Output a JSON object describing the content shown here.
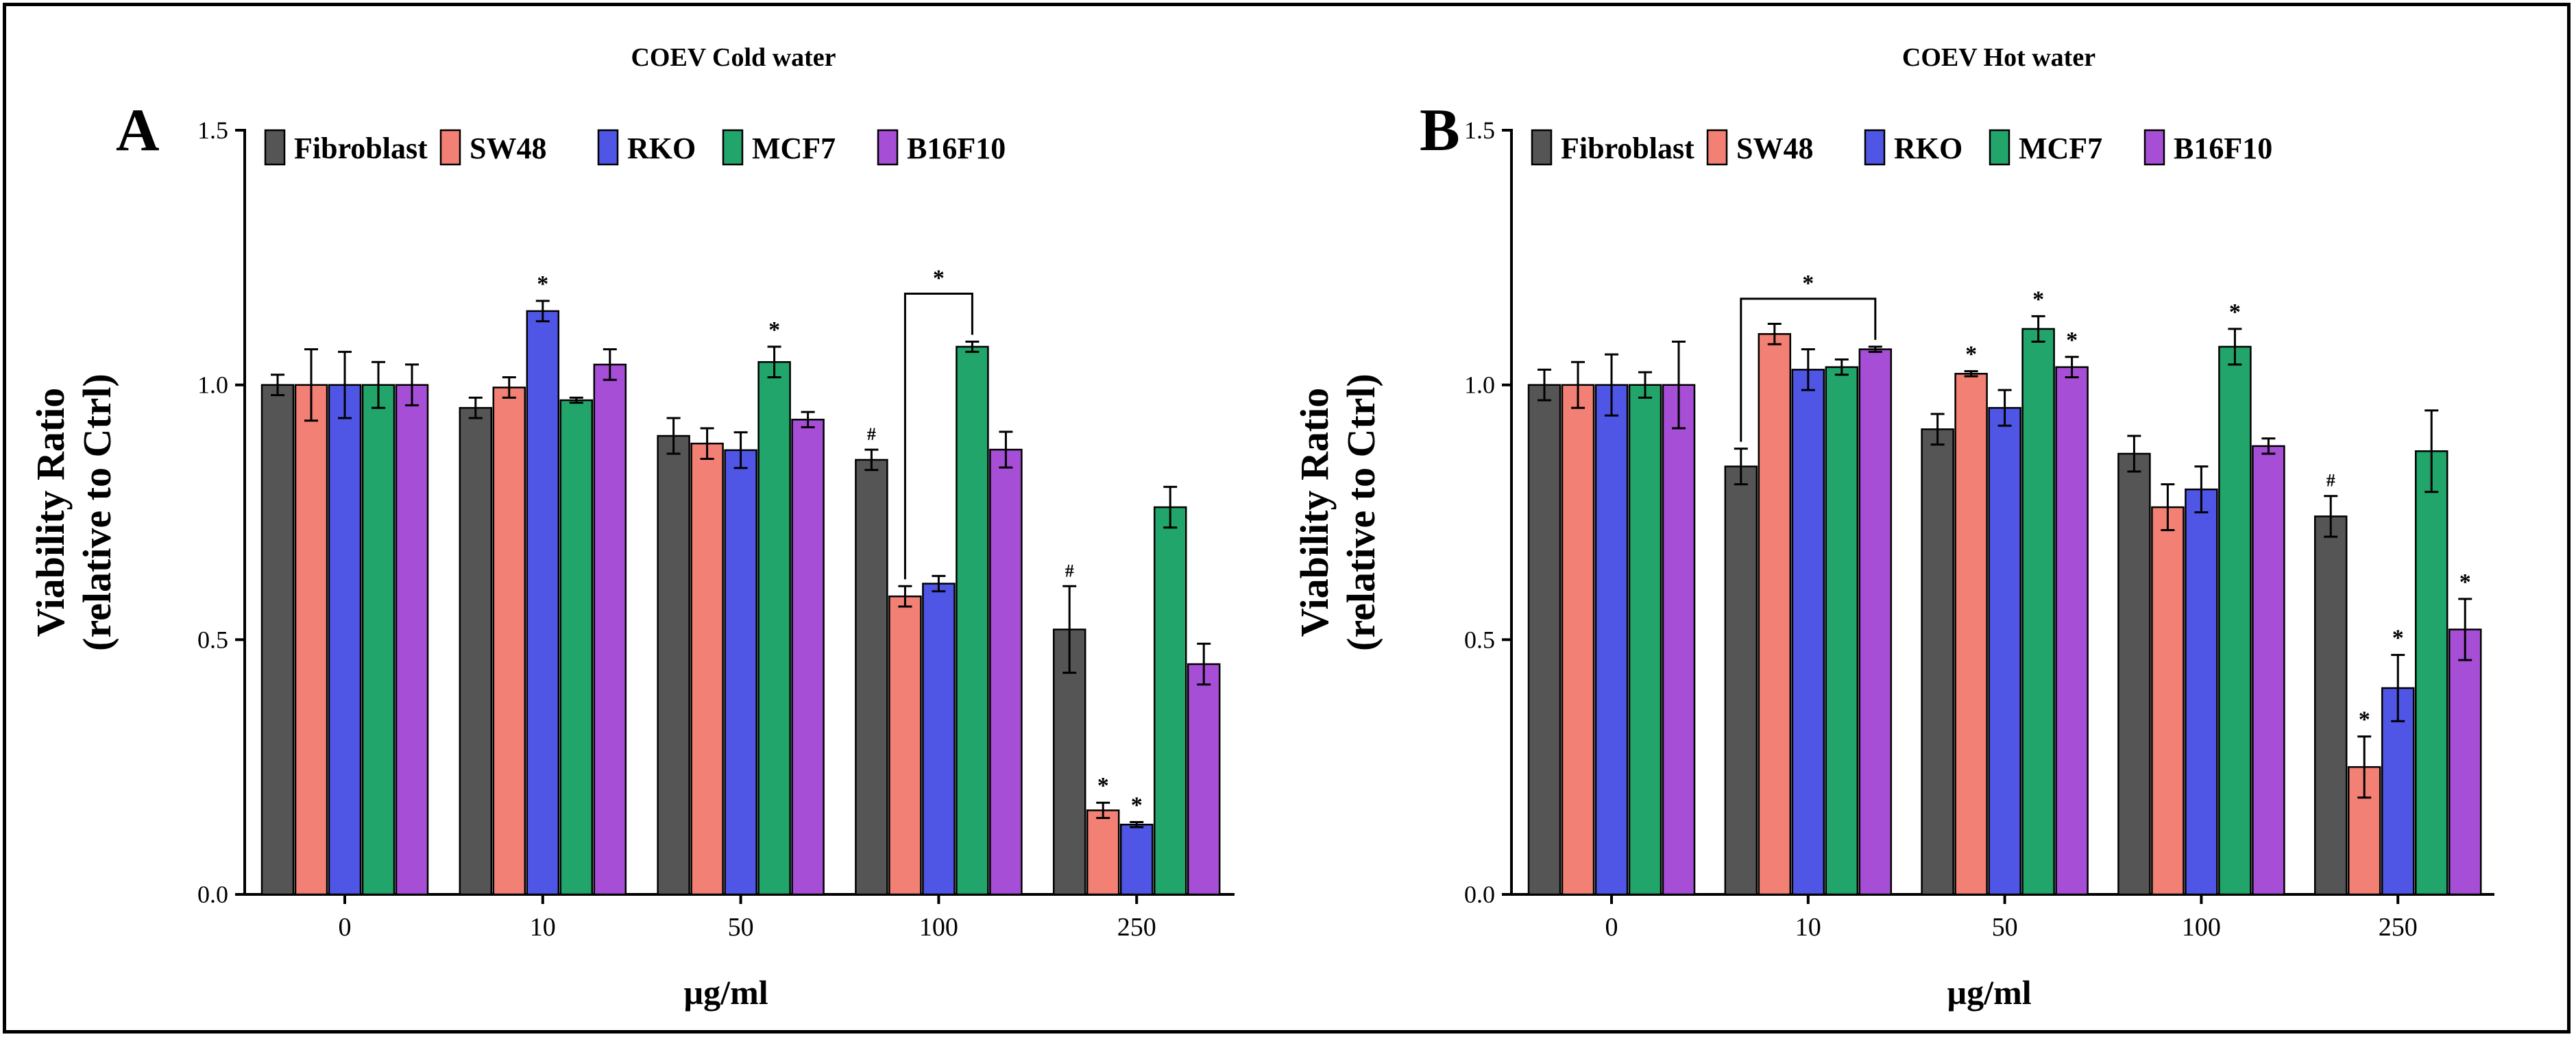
{
  "colors": {
    "Fibroblast": "#555555",
    "SW48": "#F28074",
    "RKO": "#4F56E6",
    "MCF7": "#22A56A",
    "B16F10": "#A64FD6"
  },
  "chart_data": [
    {
      "panel": "A",
      "type": "bar",
      "title": "COEV Cold water",
      "xlabel": "µg/ml",
      "ylabel_line1": "Viability Ratio",
      "ylabel_line2": "(relative to Ctrl)",
      "ylim": [
        0,
        1.5
      ],
      "yticks": [
        "0.0",
        "0.5",
        "1.0",
        "1.5"
      ],
      "categories": [
        "0",
        "10",
        "50",
        "100",
        "250"
      ],
      "series": [
        {
          "name": "Fibroblast",
          "values": [
            1.0,
            0.955,
            0.9,
            0.853,
            0.52
          ],
          "errors": [
            0.02,
            0.02,
            0.035,
            0.02,
            0.085
          ],
          "marks": [
            "",
            "",
            "",
            "#",
            "#"
          ]
        },
        {
          "name": "SW48",
          "values": [
            1.0,
            0.995,
            0.885,
            0.585,
            0.165
          ],
          "errors": [
            0.07,
            0.02,
            0.03,
            0.02,
            0.015
          ],
          "marks": [
            "",
            "",
            "",
            "",
            "*"
          ]
        },
        {
          "name": "RKO",
          "values": [
            1.0,
            1.145,
            0.872,
            0.61,
            0.137
          ],
          "errors": [
            0.065,
            0.02,
            0.035,
            0.015,
            0.005
          ],
          "marks": [
            "",
            "*",
            "",
            "",
            "*"
          ]
        },
        {
          "name": "MCF7",
          "values": [
            1.0,
            0.97,
            1.045,
            1.075,
            0.76
          ],
          "errors": [
            0.045,
            0.005,
            0.03,
            0.01,
            0.04
          ],
          "marks": [
            "",
            "",
            "*",
            "",
            ""
          ]
        },
        {
          "name": "B16F10",
          "values": [
            1.0,
            1.04,
            0.932,
            0.873,
            0.452
          ],
          "errors": [
            0.04,
            0.03,
            0.015,
            0.035,
            0.04
          ],
          "marks": [
            "",
            "",
            "",
            "",
            ""
          ]
        }
      ],
      "annotations": [
        {
          "text": "*",
          "from": {
            "category": "100",
            "series": "SW48"
          },
          "to": {
            "category": "100",
            "series": "MCF7"
          }
        }
      ]
    },
    {
      "panel": "B",
      "type": "bar",
      "title": "COEV Hot water",
      "xlabel": "µg/ml",
      "ylabel_line1": "Viability Ratio",
      "ylabel_line2": "(relative to Ctrl)",
      "ylim": [
        0,
        1.5
      ],
      "yticks": [
        "0.0",
        "0.5",
        "1.0",
        "1.5"
      ],
      "categories": [
        "0",
        "10",
        "50",
        "100",
        "250"
      ],
      "series": [
        {
          "name": "Fibroblast",
          "values": [
            1.0,
            0.84,
            0.913,
            0.865,
            0.742
          ],
          "errors": [
            0.03,
            0.035,
            0.03,
            0.035,
            0.04
          ],
          "marks": [
            "",
            "",
            "",
            "",
            "#"
          ]
        },
        {
          "name": "SW48",
          "values": [
            1.0,
            1.1,
            1.022,
            0.76,
            0.25
          ],
          "errors": [
            0.045,
            0.02,
            0.005,
            0.045,
            0.06
          ],
          "marks": [
            "",
            "",
            "*",
            "",
            "*"
          ]
        },
        {
          "name": "RKO",
          "values": [
            1.0,
            1.03,
            0.955,
            0.795,
            0.405
          ],
          "errors": [
            0.06,
            0.04,
            0.035,
            0.045,
            0.065
          ],
          "marks": [
            "",
            "",
            "",
            "",
            "*"
          ]
        },
        {
          "name": "MCF7",
          "values": [
            1.0,
            1.035,
            1.11,
            1.075,
            0.87
          ],
          "errors": [
            0.025,
            0.015,
            0.025,
            0.035,
            0.08
          ],
          "marks": [
            "",
            "",
            "*",
            "*",
            ""
          ]
        },
        {
          "name": "B16F10",
          "values": [
            1.0,
            1.07,
            1.035,
            0.88,
            0.52
          ],
          "errors": [
            0.085,
            0.005,
            0.02,
            0.015,
            0.06
          ],
          "marks": [
            "",
            "",
            "*",
            "",
            "*"
          ]
        }
      ],
      "annotations": [
        {
          "text": "*",
          "from": {
            "category": "10",
            "series": "Fibroblast"
          },
          "to": {
            "category": "10",
            "series": "B16F10"
          }
        }
      ]
    }
  ]
}
